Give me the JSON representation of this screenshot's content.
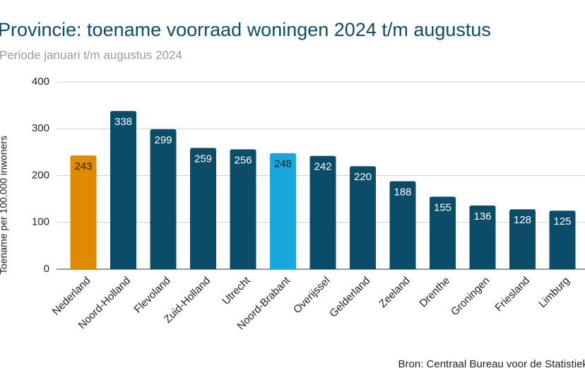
{
  "chart_data": {
    "type": "bar",
    "title": "Provincie: toename voorraad woningen 2024 t/m augustus",
    "subtitle": "Periode januari t/m augustus 2024",
    "y_label": "Toename per 100.000 inwoners",
    "source": "Bron: Centraal Bureau voor de Statistiek",
    "categories": [
      "Nederland",
      "Noord-Holland",
      "Flevoland",
      "Zuid-Holland",
      "Utrecht",
      "Noord-Brabant",
      "Overijssel",
      "Gelderland",
      "Zeeland",
      "Drenthe",
      "Groningen",
      "Friesland",
      "Limburg"
    ],
    "values": [
      243,
      338,
      299,
      259,
      256,
      248,
      242,
      220,
      188,
      155,
      136,
      128,
      125
    ],
    "colors": [
      "#e08a00",
      "#0b4d68",
      "#0b4d68",
      "#0b4d68",
      "#0b4d68",
      "#1aa7de",
      "#0b4d68",
      "#0b4d68",
      "#0b4d68",
      "#0b4d68",
      "#0b4d68",
      "#0b4d68",
      "#0b4d68"
    ],
    "ylim": [
      0,
      400
    ],
    "yticks": [
      0,
      100,
      200,
      300,
      400
    ],
    "grid": true,
    "data_labels": true
  }
}
